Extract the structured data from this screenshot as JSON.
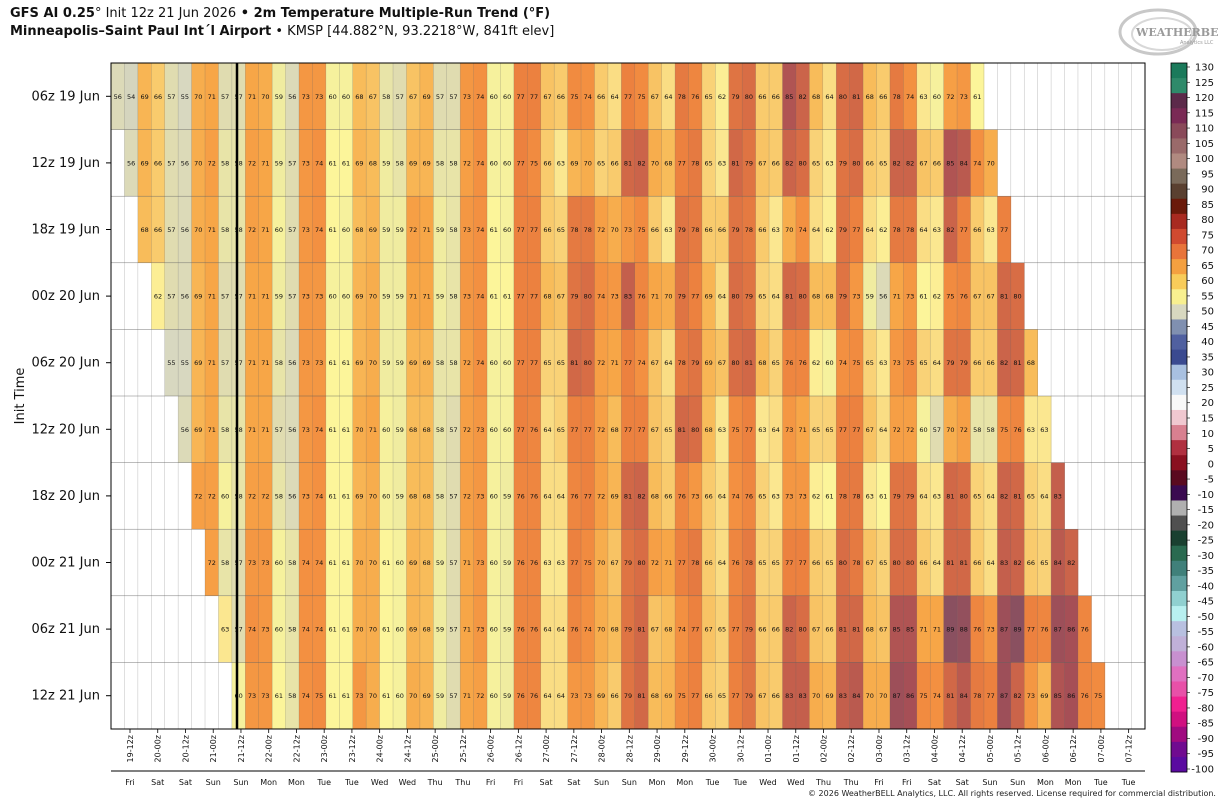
{
  "header": {
    "model": "GFS AI 0.25",
    "degree": "°",
    "init": " Init 12z 21 Jun 2026",
    "bullet": " • ",
    "product": "2m Temperature Multiple-Run Trend (°F)",
    "station": "Minneapolis–Saint Paul Int´l Airport",
    "station_info": " • KMSP [44.882°N, 93.2218°W, 841ft elev]"
  },
  "logo": {
    "line1": "WEATHERBELL",
    "line2": "Analytics LLC"
  },
  "copyright": "© 2026 WeatherBELL Analytics, LLC. All rights reserved. License required for commercial distribution.",
  "chart_data": {
    "type": "heatmap",
    "ylabel": "Init Time",
    "runs": [
      "06z 19 Jun",
      "12z 19 Jun",
      "18z 19 Jun",
      "00z 20 Jun",
      "06z 20 Jun",
      "12z 20 Jun",
      "18z 20 Jun",
      "00z 21 Jun",
      "06z 21 Jun",
      "12z 21 Jun"
    ],
    "x_ticks": [
      "19-12z",
      "20-00z",
      "20-12z",
      "21-00z",
      "21-12z",
      "22-00z",
      "22-12z",
      "23-00z",
      "23-12z",
      "24-00z",
      "24-12z",
      "25-00z",
      "25-12z",
      "26-00z",
      "26-12z",
      "27-00z",
      "27-12z",
      "28-00z",
      "28-12z",
      "29-00z",
      "29-12z",
      "30-00z",
      "30-12z",
      "01-00z",
      "01-12z",
      "02-00z",
      "02-12z",
      "03-00z",
      "03-12z",
      "04-00z",
      "04-12z",
      "05-00z",
      "05-12z",
      "06-00z",
      "06-12z",
      "07-00z",
      "07-12z"
    ],
    "x_days": [
      "Fri",
      "Sat",
      "Sat",
      "Sun",
      "Sun",
      "Mon",
      "Mon",
      "Tue",
      "Tue",
      "Wed",
      "Wed",
      "Thu",
      "Thu",
      "Fri",
      "Fri",
      "Sat",
      "Sat",
      "Sun",
      "Sun",
      "Mon",
      "Mon",
      "Tue",
      "Tue",
      "Wed",
      "Wed",
      "Thu",
      "Thu",
      "Fri",
      "Fri",
      "Sat",
      "Sat",
      "Sun",
      "Sun",
      "Mon",
      "Mon",
      "Tue",
      "Tue"
    ],
    "time_step_hours": 6,
    "first_valid": "19 Jun 06z",
    "init_marker": "21 Jun 12z",
    "rows": [
      {
        "run": "06z 19 Jun",
        "start_index": 0,
        "values": [
          56,
          54,
          69,
          66,
          57,
          55,
          70,
          71,
          57,
          57,
          71,
          70,
          59,
          56,
          73,
          73,
          60,
          60,
          68,
          67,
          58,
          57,
          67,
          69,
          57,
          57,
          73,
          74,
          60,
          60,
          77,
          77,
          67,
          66,
          75,
          74,
          66,
          64,
          77,
          75,
          67,
          64,
          78,
          76,
          65,
          62,
          79,
          80,
          66,
          66,
          85,
          82,
          68,
          64,
          80,
          81,
          68,
          66,
          78,
          74,
          63,
          60,
          72,
          73,
          61
        ]
      },
      {
        "run": "12z 19 Jun",
        "start_index": 1,
        "values": [
          56,
          69,
          66,
          57,
          56,
          70,
          72,
          58,
          58,
          72,
          71,
          59,
          57,
          73,
          74,
          61,
          61,
          69,
          68,
          59,
          58,
          69,
          69,
          58,
          58,
          72,
          74,
          60,
          60,
          77,
          75,
          66,
          63,
          69,
          70,
          65,
          66,
          81,
          82,
          70,
          68,
          77,
          78,
          65,
          63,
          81,
          79,
          67,
          66,
          82,
          80,
          65,
          63,
          79,
          80,
          66,
          65,
          82,
          82,
          67,
          66,
          85,
          84,
          74,
          70
        ]
      },
      {
        "run": "18z 19 Jun",
        "start_index": 2,
        "values": [
          68,
          66,
          57,
          56,
          70,
          71,
          58,
          58,
          72,
          71,
          60,
          57,
          73,
          74,
          61,
          60,
          68,
          69,
          59,
          59,
          72,
          71,
          59,
          58,
          73,
          74,
          61,
          60,
          77,
          77,
          66,
          65,
          78,
          78,
          72,
          70,
          73,
          75,
          66,
          63,
          79,
          78,
          66,
          66,
          79,
          78,
          66,
          63,
          70,
          74,
          64,
          62,
          79,
          77,
          64,
          62,
          78,
          78,
          64,
          63,
          82,
          77,
          66,
          63,
          77
        ]
      },
      {
        "run": "00z 20 Jun",
        "start_index": 3,
        "values": [
          62,
          57,
          56,
          69,
          71,
          57,
          57,
          71,
          71,
          59,
          57,
          73,
          73,
          60,
          60,
          69,
          70,
          59,
          59,
          71,
          71,
          59,
          58,
          73,
          74,
          61,
          61,
          77,
          77,
          68,
          67,
          79,
          80,
          74,
          73,
          83,
          76,
          71,
          70,
          79,
          77,
          69,
          64,
          80,
          79,
          65,
          64,
          81,
          80,
          68,
          68,
          79,
          73,
          59,
          56,
          71,
          73,
          61,
          62,
          75,
          76,
          67,
          67,
          81,
          80
        ]
      },
      {
        "run": "06z 20 Jun",
        "start_index": 4,
        "values": [
          55,
          55,
          69,
          71,
          57,
          57,
          71,
          71,
          58,
          56,
          73,
          73,
          61,
          61,
          69,
          70,
          59,
          59,
          69,
          69,
          58,
          58,
          72,
          74,
          60,
          60,
          77,
          77,
          65,
          65,
          81,
          80,
          72,
          71,
          77,
          74,
          67,
          64,
          78,
          79,
          69,
          67,
          80,
          81,
          68,
          65,
          76,
          76,
          62,
          60,
          74,
          75,
          65,
          63,
          73,
          75,
          65,
          64,
          79,
          79,
          66,
          66,
          82,
          81,
          68
        ]
      },
      {
        "run": "12z 20 Jun",
        "start_index": 5,
        "values": [
          56,
          69,
          71,
          58,
          58,
          71,
          71,
          57,
          56,
          73,
          74,
          61,
          61,
          70,
          71,
          60,
          59,
          68,
          68,
          58,
          57,
          72,
          73,
          60,
          60,
          77,
          76,
          64,
          65,
          77,
          77,
          72,
          68,
          77,
          77,
          67,
          65,
          81,
          80,
          68,
          63,
          75,
          77,
          63,
          64,
          73,
          71,
          65,
          65,
          77,
          77,
          67,
          64,
          72,
          72,
          60,
          57,
          70,
          72,
          58,
          58,
          75,
          76,
          63,
          63
        ]
      },
      {
        "run": "18z 20 Jun",
        "start_index": 6,
        "values": [
          72,
          72,
          60,
          58,
          72,
          72,
          58,
          56,
          73,
          74,
          61,
          61,
          69,
          70,
          60,
          59,
          68,
          68,
          58,
          57,
          72,
          73,
          60,
          59,
          76,
          76,
          64,
          64,
          76,
          77,
          72,
          69,
          81,
          82,
          68,
          66,
          76,
          73,
          66,
          64,
          74,
          76,
          65,
          63,
          73,
          73,
          62,
          61,
          78,
          78,
          63,
          61,
          79,
          79,
          64,
          63,
          81,
          80,
          65,
          64,
          82,
          81,
          65,
          64,
          83
        ]
      },
      {
        "run": "00z 21 Jun",
        "start_index": 7,
        "values": [
          72,
          58,
          57,
          73,
          73,
          60,
          58,
          74,
          74,
          61,
          61,
          70,
          70,
          61,
          60,
          69,
          68,
          59,
          57,
          71,
          73,
          60,
          59,
          76,
          76,
          63,
          63,
          77,
          75,
          70,
          67,
          79,
          80,
          72,
          71,
          77,
          78,
          66,
          64,
          76,
          78,
          65,
          65,
          77,
          77,
          66,
          65,
          80,
          78,
          67,
          65,
          80,
          80,
          66,
          64,
          81,
          81,
          66,
          64,
          83,
          82,
          66,
          65,
          84,
          82
        ]
      },
      {
        "run": "06z 21 Jun",
        "start_index": 8,
        "values": [
          63,
          57,
          74,
          73,
          60,
          58,
          74,
          74,
          61,
          61,
          70,
          70,
          61,
          60,
          69,
          68,
          59,
          57,
          71,
          73,
          60,
          59,
          76,
          76,
          64,
          64,
          76,
          74,
          70,
          68,
          79,
          81,
          67,
          68,
          74,
          77,
          67,
          65,
          77,
          79,
          66,
          66,
          82,
          80,
          67,
          66,
          81,
          81,
          68,
          67,
          85,
          85,
          71,
          71,
          89,
          88,
          76,
          73,
          87,
          89,
          77,
          76,
          87,
          86,
          76
        ]
      },
      {
        "run": "12z 21 Jun",
        "start_index": 9,
        "values": [
          60,
          73,
          73,
          61,
          58,
          74,
          75,
          61,
          61,
          73,
          70,
          61,
          60,
          70,
          69,
          59,
          57,
          71,
          72,
          60,
          59,
          76,
          76,
          64,
          64,
          73,
          73,
          69,
          66,
          79,
          81,
          68,
          69,
          75,
          77,
          66,
          65,
          77,
          79,
          67,
          66,
          83,
          83,
          70,
          69,
          83,
          84,
          70,
          70,
          87,
          86,
          75,
          74,
          81,
          84,
          78,
          77,
          87,
          82,
          73,
          69,
          85,
          86,
          76,
          75
        ]
      }
    ],
    "colorbar_ticks": [
      130,
      125,
      120,
      115,
      110,
      105,
      100,
      95,
      90,
      85,
      80,
      75,
      70,
      65,
      60,
      55,
      50,
      45,
      40,
      35,
      30,
      25,
      20,
      15,
      10,
      5,
      0,
      -5,
      -10,
      -15,
      -20,
      -25,
      -30,
      -35,
      -40,
      -45,
      -50,
      -55,
      -60,
      -65,
      -70,
      -75,
      -80,
      -85,
      -90,
      -95,
      -100
    ],
    "colorbar_colors": [
      "#1b7a5b",
      "#2f8a6a",
      "#5c2a4a",
      "#7a2a55",
      "#8a4a5a",
      "#9a6a6a",
      "#b08a80",
      "#7a6a5a",
      "#5a4030",
      "#6a1a0a",
      "#a82a20",
      "#d04a30",
      "#e8743a",
      "#f4a040",
      "#f8cc5a",
      "#f8f090",
      "#d8d8c0",
      "#8090b0",
      "#5060a0",
      "#3a4a90",
      "#a8c0e0",
      "#d0e0f0",
      "#f8f8f8",
      "#f0c8d0",
      "#d88090",
      "#b03040",
      "#8a1020",
      "#5a0a20",
      "#3a0a50",
      "#b0b0b0",
      "#505050",
      "#1a4030",
      "#2a6a50",
      "#40807a",
      "#60a0a0",
      "#90d0d0",
      "#b8f0f0",
      "#b8c0e0",
      "#c0b0d8",
      "#c890d0",
      "#e070c0",
      "#e850a8",
      "#f02090",
      "#d01080",
      "#a00a80",
      "#700a90",
      "#5a0aa0"
    ]
  }
}
